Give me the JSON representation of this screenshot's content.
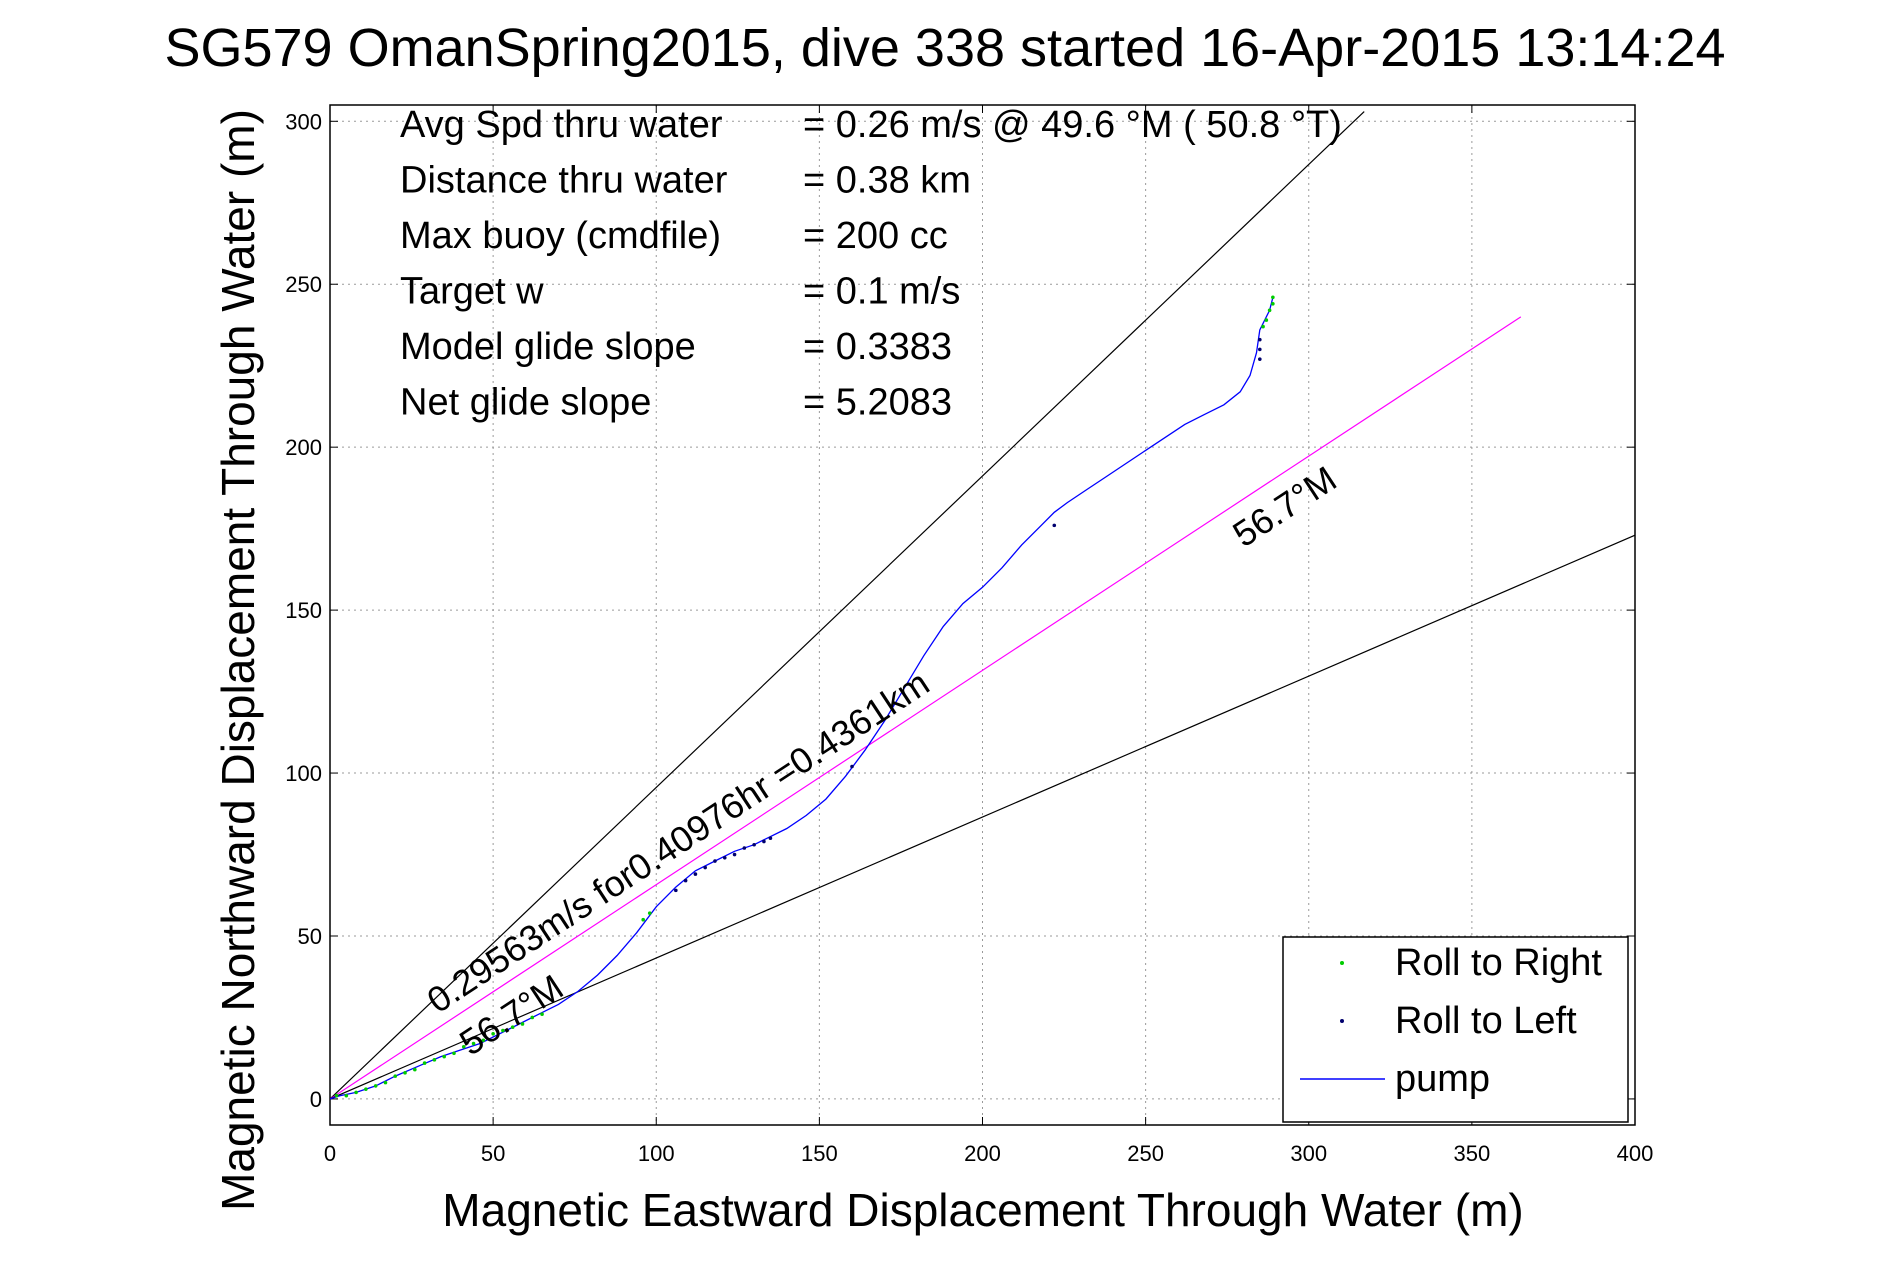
{
  "chart_data": {
    "type": "scatter",
    "title": "SG579 OmanSpring2015, dive 338 started 16-Apr-2015 13:14:24",
    "xlabel": "Magnetic Eastward Displacement Through Water (m)",
    "ylabel": "Magnetic Northward Displacement Through Water (m)",
    "xlim": [
      0,
      400
    ],
    "ylim": [
      -8,
      305
    ],
    "xticks": [
      0,
      50,
      100,
      150,
      200,
      250,
      300,
      350,
      400
    ],
    "yticks": [
      0,
      50,
      100,
      150,
      200,
      250,
      300
    ],
    "grid": true,
    "legend_position": "bottom-right",
    "info_lines": [
      {
        "label": "Avg Spd thru water",
        "value": "=  0.26 m/s @  49.6 °M ( 50.8 °T)"
      },
      {
        "label": "Distance thru water",
        "value": "=  0.38 km"
      },
      {
        "label": "Max buoy (cmdfile)",
        "value": "= 200 cc"
      },
      {
        "label": "Target w",
        "value": "= 0.1 m/s"
      },
      {
        "label": "Model glide slope",
        "value": "= 0.3383"
      },
      {
        "label": "Net glide slope",
        "value": "= 5.2083"
      }
    ],
    "reference_lines": [
      {
        "name": "upper-bound",
        "color": "#000000",
        "points": [
          [
            0,
            0
          ],
          [
            317,
            303
          ]
        ]
      },
      {
        "name": "heading",
        "color": "#ff00ff",
        "points": [
          [
            0,
            0
          ],
          [
            365,
            240
          ]
        ]
      },
      {
        "name": "lower-bound",
        "color": "#000000",
        "points": [
          [
            0,
            0
          ],
          [
            400,
            173
          ]
        ]
      }
    ],
    "annotations": [
      {
        "text": "0.29563m/s for0.40976hr =0.4361km",
        "anchor": [
          33,
          26
        ],
        "rotation": 33.3
      },
      {
        "text": "56.7°M",
        "anchor": [
          43,
          13
        ],
        "rotation": 33.3
      },
      {
        "text": "56.7°M",
        "anchor": [
          280,
          169
        ],
        "rotation": 33.3
      }
    ],
    "series": [
      {
        "name": "pump",
        "color": "#0000ff",
        "kind": "line",
        "points": [
          [
            0,
            0
          ],
          [
            3,
            1
          ],
          [
            8,
            2
          ],
          [
            14,
            4
          ],
          [
            20,
            7
          ],
          [
            27,
            10
          ],
          [
            34,
            13
          ],
          [
            40,
            15
          ],
          [
            46,
            17
          ],
          [
            52,
            20
          ],
          [
            58,
            23
          ],
          [
            64,
            26
          ],
          [
            70,
            29
          ],
          [
            76,
            33
          ],
          [
            82,
            38
          ],
          [
            88,
            44
          ],
          [
            94,
            51
          ],
          [
            100,
            59
          ],
          [
            106,
            65
          ],
          [
            112,
            70
          ],
          [
            118,
            73
          ],
          [
            124,
            76
          ],
          [
            130,
            78
          ],
          [
            134,
            80
          ],
          [
            140,
            83
          ],
          [
            146,
            87
          ],
          [
            152,
            92
          ],
          [
            158,
            99
          ],
          [
            164,
            107
          ],
          [
            170,
            116
          ],
          [
            176,
            126
          ],
          [
            182,
            136
          ],
          [
            188,
            145
          ],
          [
            194,
            152
          ],
          [
            200,
            157
          ],
          [
            206,
            163
          ],
          [
            212,
            170
          ],
          [
            218,
            176
          ],
          [
            222,
            180
          ],
          [
            226,
            183
          ],
          [
            232,
            187
          ],
          [
            238,
            191
          ],
          [
            244,
            195
          ],
          [
            250,
            199
          ],
          [
            256,
            203
          ],
          [
            262,
            207
          ],
          [
            268,
            210
          ],
          [
            274,
            213
          ],
          [
            279,
            217
          ],
          [
            282,
            222
          ],
          [
            284,
            229
          ],
          [
            285,
            236
          ],
          [
            288,
            242
          ],
          [
            289,
            246
          ]
        ]
      },
      {
        "name": "Roll to Right",
        "color": "#00cc00",
        "kind": "markers",
        "points": [
          [
            2,
            1
          ],
          [
            5,
            1
          ],
          [
            8,
            2
          ],
          [
            11,
            3
          ],
          [
            14,
            4
          ],
          [
            17,
            5
          ],
          [
            20,
            7
          ],
          [
            23,
            8
          ],
          [
            26,
            9
          ],
          [
            29,
            11
          ],
          [
            32,
            12
          ],
          [
            35,
            13
          ],
          [
            38,
            14
          ],
          [
            41,
            16
          ],
          [
            44,
            17
          ],
          [
            47,
            18
          ],
          [
            50,
            20
          ],
          [
            53,
            21
          ],
          [
            56,
            22
          ],
          [
            59,
            23
          ],
          [
            62,
            25
          ],
          [
            65,
            26
          ],
          [
            96,
            55
          ],
          [
            98,
            57
          ],
          [
            286,
            237
          ],
          [
            287,
            239
          ],
          [
            288,
            242
          ],
          [
            289,
            244
          ],
          [
            289,
            246
          ]
        ]
      },
      {
        "name": "Roll to Left",
        "color": "#00006e",
        "kind": "markers",
        "points": [
          [
            106,
            64
          ],
          [
            109,
            67
          ],
          [
            112,
            69
          ],
          [
            115,
            71
          ],
          [
            118,
            73
          ],
          [
            121,
            74
          ],
          [
            124,
            75
          ],
          [
            127,
            77
          ],
          [
            130,
            78
          ],
          [
            133,
            79
          ],
          [
            135,
            80
          ],
          [
            160,
            102
          ],
          [
            222,
            176
          ],
          [
            285,
            227
          ],
          [
            285,
            230
          ],
          [
            285,
            233
          ]
        ]
      }
    ]
  }
}
